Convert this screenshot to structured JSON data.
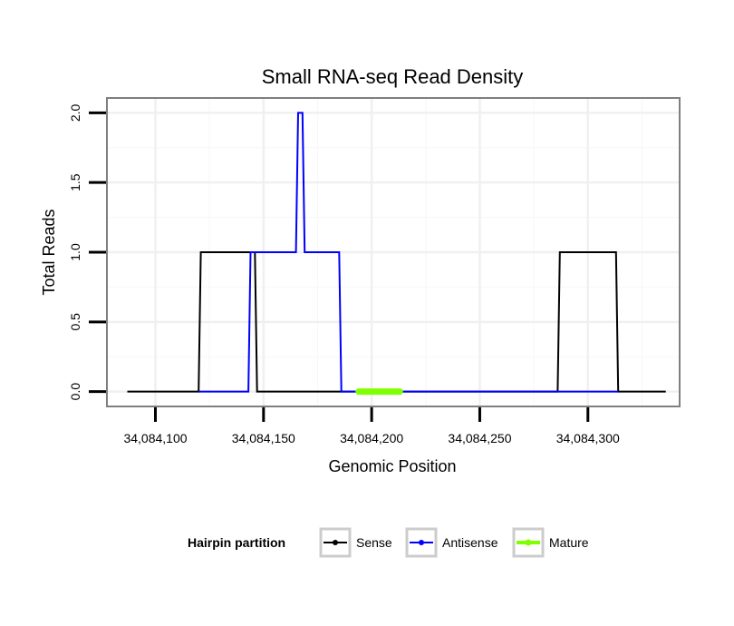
{
  "chart_data": {
    "type": "line",
    "title": "Small RNA-seq Read Density",
    "xlabel": "Genomic Position",
    "ylabel": "Total Reads",
    "xlim": [
      34084078,
      34084342
    ],
    "ylim": [
      -0.1,
      2.1
    ],
    "x_ticks": [
      34084100,
      34084150,
      34084200,
      34084250,
      34084300
    ],
    "x_tick_labels": [
      "34,084,100",
      "34,084,150",
      "34,084,200",
      "34,084,250",
      "34,084,300"
    ],
    "y_ticks": [
      0.0,
      0.5,
      1.0,
      1.5,
      2.0
    ],
    "y_tick_labels": [
      "0.0",
      "0.5",
      "1.0",
      "1.5",
      "2.0"
    ],
    "grid": true,
    "legend": {
      "title": "Hairpin partition",
      "position": "bottom",
      "entries": [
        {
          "label": "Sense",
          "color": "#000000"
        },
        {
          "label": "Antisense",
          "color": "#0000ff"
        },
        {
          "label": "Mature",
          "color": "#7fff00"
        }
      ]
    },
    "series": [
      {
        "name": "Sense",
        "color": "#000000",
        "x": [
          34084087,
          34084120,
          34084121,
          34084146,
          34084147,
          34084286,
          34084287,
          34084313,
          34084314,
          34084336
        ],
        "y": [
          0,
          0,
          1,
          1,
          0,
          0,
          1,
          1,
          0,
          0
        ]
      },
      {
        "name": "Antisense",
        "color": "#0000ff",
        "x": [
          34084120,
          34084143,
          34084144,
          34084165,
          34084166,
          34084168,
          34084169,
          34084185,
          34084186,
          34084286,
          34084287,
          34084313,
          34084314
        ],
        "y": [
          0,
          0,
          1,
          1,
          2,
          2,
          1,
          1,
          0,
          0,
          0,
          0,
          0
        ]
      },
      {
        "name": "Mature",
        "color": "#7fff00",
        "x": [
          34084194,
          34084213
        ],
        "y": [
          0,
          0
        ]
      }
    ]
  }
}
